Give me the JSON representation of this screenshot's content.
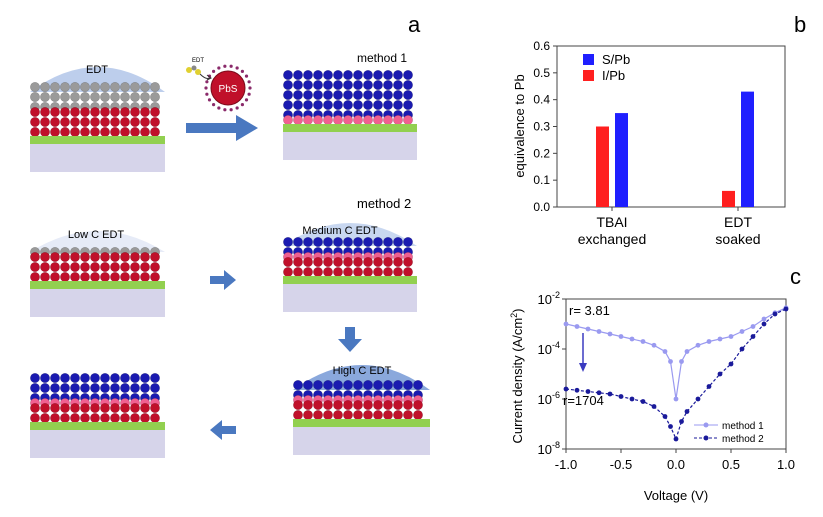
{
  "panel_labels": {
    "a": "a",
    "b": "b",
    "c": "c"
  },
  "schematic": {
    "edt_cap": "EDT",
    "pbs_particle": "PbS",
    "edt_small": "EDT",
    "method1": "method 1",
    "method2": "method 2",
    "low_c": "Low C EDT",
    "medium_c": "Medium C EDT",
    "high_c": "High C EDT"
  },
  "colors": {
    "grey_dot": "#9a9a9a",
    "red_dot": "#c0102a",
    "blue_dot": "#1a1ab0",
    "pink_dot": "#f06090",
    "green_layer": "#92d050",
    "substrate": "#d6d4ea",
    "cap": "#aec3e8",
    "arrow": "#4a78c0",
    "bar_blue": "#1f1fff",
    "bar_red": "#ff1f1f",
    "method1_line": "#9a9af0",
    "method2_line": "#1a1a9a"
  },
  "chart_data": [
    {
      "type": "bar",
      "panel": "b",
      "categories": [
        "TBAI\nexchanged",
        "EDT\nsoaked"
      ],
      "category_lines": [
        [
          "TBAI",
          "exchanged"
        ],
        [
          "EDT",
          "soaked"
        ]
      ],
      "series": [
        {
          "name": "I/Pb",
          "color": "#ff1f1f",
          "values": [
            0.3,
            0.06
          ]
        },
        {
          "name": "S/Pb",
          "color": "#1f1fff",
          "values": [
            0.35,
            0.43
          ]
        }
      ],
      "legend_order": [
        "S/Pb",
        "I/Pb"
      ],
      "ylabel": "equivalence to Pb",
      "ylim": [
        0,
        0.6
      ],
      "yticks": [
        "0.0",
        "0.1",
        "0.2",
        "0.3",
        "0.4",
        "0.5",
        "0.6"
      ]
    },
    {
      "type": "line",
      "panel": "c",
      "xlabel": "Voltage (V)",
      "ylabel": "Current density (A/cm²)",
      "ylabel_prefix": "Current density (A/cm",
      "ylabel_sup": "2",
      "ylabel_suffix": ")",
      "xlim": [
        -1.0,
        1.0
      ],
      "xticks": [
        "-1.0",
        "-0.5",
        "0.0",
        "0.5",
        "1.0"
      ],
      "ylim_log10": [
        -8,
        -2
      ],
      "yticks": [
        {
          "base": "10",
          "exp": "-2"
        },
        {
          "base": "10",
          "exp": "-4"
        },
        {
          "base": "10",
          "exp": "-6"
        },
        {
          "base": "10",
          "exp": "-8"
        }
      ],
      "annotations": {
        "r1": "r= 3.81",
        "r2": "r=1704"
      },
      "series": [
        {
          "name": "method 1",
          "color": "#9a9af0",
          "x": [
            -1.0,
            -0.9,
            -0.8,
            -0.7,
            -0.6,
            -0.5,
            -0.4,
            -0.3,
            -0.2,
            -0.1,
            -0.05,
            0.0,
            0.05,
            0.1,
            0.2,
            0.3,
            0.4,
            0.5,
            0.6,
            0.7,
            0.8,
            0.9,
            1.0
          ],
          "log10_y": [
            -3.0,
            -3.1,
            -3.2,
            -3.3,
            -3.4,
            -3.5,
            -3.6,
            -3.7,
            -3.85,
            -4.1,
            -4.5,
            -6.0,
            -4.5,
            -4.1,
            -3.85,
            -3.7,
            -3.6,
            -3.5,
            -3.3,
            -3.1,
            -2.8,
            -2.55,
            -2.35
          ]
        },
        {
          "name": "method 2",
          "color": "#1a1a9a",
          "x": [
            -1.0,
            -0.9,
            -0.8,
            -0.7,
            -0.6,
            -0.5,
            -0.4,
            -0.3,
            -0.2,
            -0.1,
            -0.05,
            0.0,
            0.05,
            0.1,
            0.2,
            0.3,
            0.4,
            0.5,
            0.6,
            0.7,
            0.8,
            0.9,
            1.0
          ],
          "log10_y": [
            -5.6,
            -5.65,
            -5.7,
            -5.75,
            -5.8,
            -5.9,
            -6.0,
            -6.1,
            -6.3,
            -6.7,
            -7.1,
            -7.6,
            -6.9,
            -6.5,
            -6.0,
            -5.5,
            -5.0,
            -4.6,
            -4.0,
            -3.5,
            -3.0,
            -2.6,
            -2.4
          ]
        }
      ]
    }
  ]
}
